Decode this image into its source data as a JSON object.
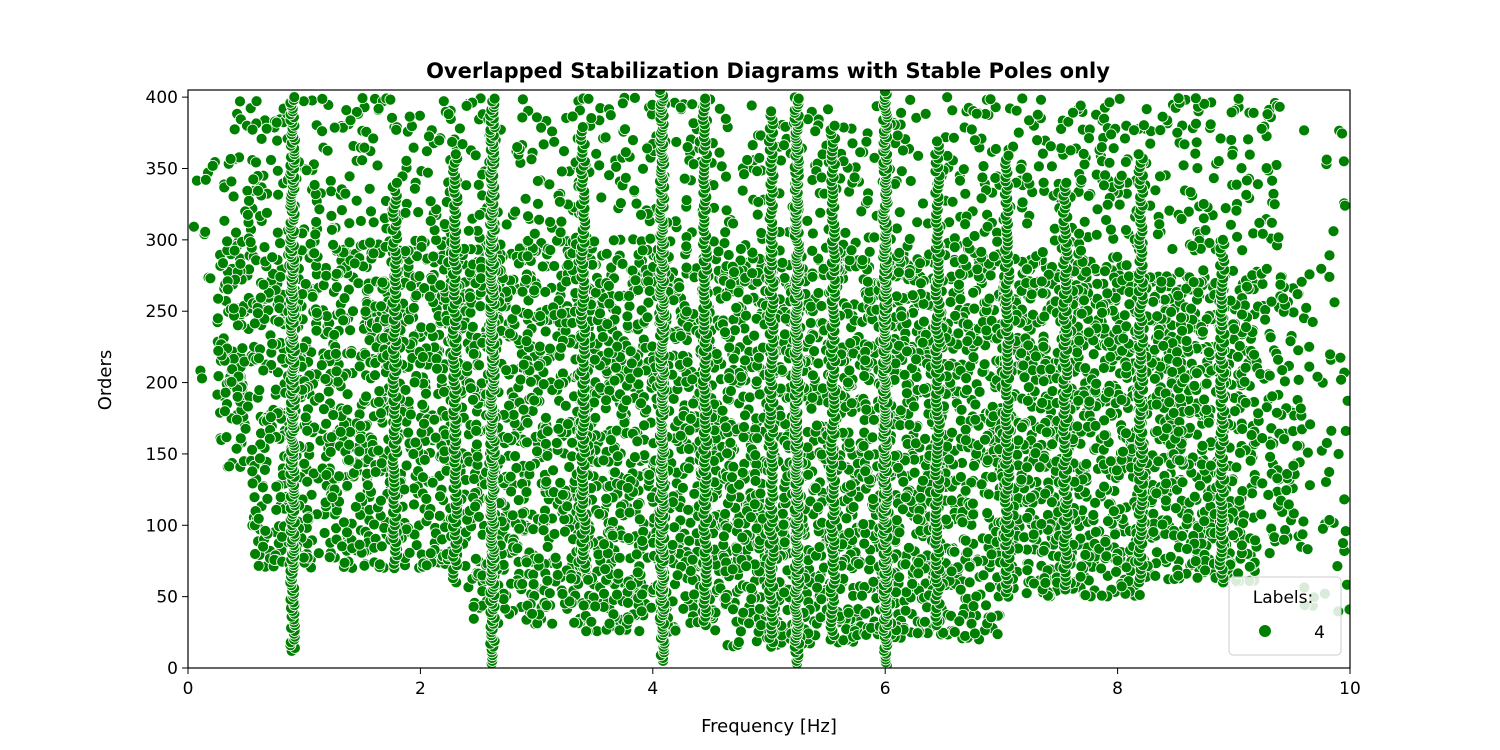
{
  "chart_data": {
    "type": "scatter",
    "title": "Overlapped Stabilization Diagrams with Stable Poles only",
    "xlabel": "Frequency [Hz]",
    "ylabel": "Orders",
    "xlim": [
      0,
      10
    ],
    "ylim": [
      0,
      405
    ],
    "xticks": [
      0,
      2,
      4,
      6,
      8,
      10
    ],
    "yticks": [
      0,
      50,
      100,
      150,
      200,
      250,
      300,
      350,
      400
    ],
    "grid": false,
    "legend": {
      "title": "Labels:",
      "placement": "bottom-right",
      "entries": [
        "4"
      ]
    },
    "series": [
      {
        "name": "4",
        "color": "#008000",
        "columns": [
          {
            "x": 0.9,
            "ymin": 12,
            "ymax": 400,
            "step": 2
          },
          {
            "x": 2.62,
            "ymin": 3,
            "ymax": 400,
            "step": 2
          },
          {
            "x": 4.08,
            "ymin": 5,
            "ymax": 405,
            "step": 2
          },
          {
            "x": 5.24,
            "ymin": 3,
            "ymax": 400,
            "step": 2
          },
          {
            "x": 6.0,
            "ymin": 2,
            "ymax": 405,
            "step": 2
          },
          {
            "x": 1.78,
            "ymin": 70,
            "ymax": 340,
            "step": 3
          },
          {
            "x": 2.3,
            "ymin": 60,
            "ymax": 360,
            "step": 3
          },
          {
            "x": 3.4,
            "ymin": 70,
            "ymax": 380,
            "step": 3
          },
          {
            "x": 4.45,
            "ymin": 30,
            "ymax": 400,
            "step": 3
          },
          {
            "x": 5.02,
            "ymin": 15,
            "ymax": 390,
            "step": 3
          },
          {
            "x": 5.55,
            "ymin": 20,
            "ymax": 380,
            "step": 3
          },
          {
            "x": 6.45,
            "ymin": 30,
            "ymax": 370,
            "step": 3
          },
          {
            "x": 7.05,
            "ymin": 50,
            "ymax": 360,
            "step": 3
          },
          {
            "x": 7.55,
            "ymin": 55,
            "ymax": 340,
            "step": 3
          },
          {
            "x": 8.2,
            "ymin": 60,
            "ymax": 360,
            "step": 3
          },
          {
            "x": 8.9,
            "ymin": 60,
            "ymax": 300,
            "step": 3
          }
        ],
        "clouds": [
          {
            "xmin": 0.25,
            "xmax": 0.55,
            "ymin": 140,
            "ymax": 300,
            "count": 120
          },
          {
            "xmin": 0.55,
            "xmax": 0.9,
            "ymin": 70,
            "ymax": 290,
            "count": 180
          },
          {
            "xmin": 0.9,
            "xmax": 1.6,
            "ymin": 70,
            "ymax": 300,
            "count": 380
          },
          {
            "xmin": 1.6,
            "xmax": 2.4,
            "ymin": 70,
            "ymax": 300,
            "count": 480
          },
          {
            "xmin": 2.4,
            "xmax": 3.4,
            "ymin": 30,
            "ymax": 300,
            "count": 650
          },
          {
            "xmin": 3.4,
            "xmax": 4.6,
            "ymin": 25,
            "ymax": 290,
            "count": 850
          },
          {
            "xmin": 4.6,
            "xmax": 5.8,
            "ymin": 15,
            "ymax": 290,
            "count": 900
          },
          {
            "xmin": 5.8,
            "xmax": 7.0,
            "ymin": 20,
            "ymax": 290,
            "count": 900
          },
          {
            "xmin": 7.0,
            "xmax": 8.2,
            "ymin": 50,
            "ymax": 290,
            "count": 820
          },
          {
            "xmin": 8.2,
            "xmax": 9.2,
            "ymin": 60,
            "ymax": 280,
            "count": 620
          },
          {
            "xmin": 9.2,
            "xmax": 9.6,
            "ymin": 80,
            "ymax": 280,
            "count": 110
          },
          {
            "xmin": 9.6,
            "xmax": 10.0,
            "ymin": 30,
            "ymax": 380,
            "count": 55
          },
          {
            "xmin": 0.4,
            "xmax": 9.4,
            "ymin": 290,
            "ymax": 400,
            "count": 900
          },
          {
            "xmin": 0.05,
            "xmax": 0.4,
            "ymin": 200,
            "ymax": 360,
            "count": 25
          }
        ]
      }
    ]
  }
}
